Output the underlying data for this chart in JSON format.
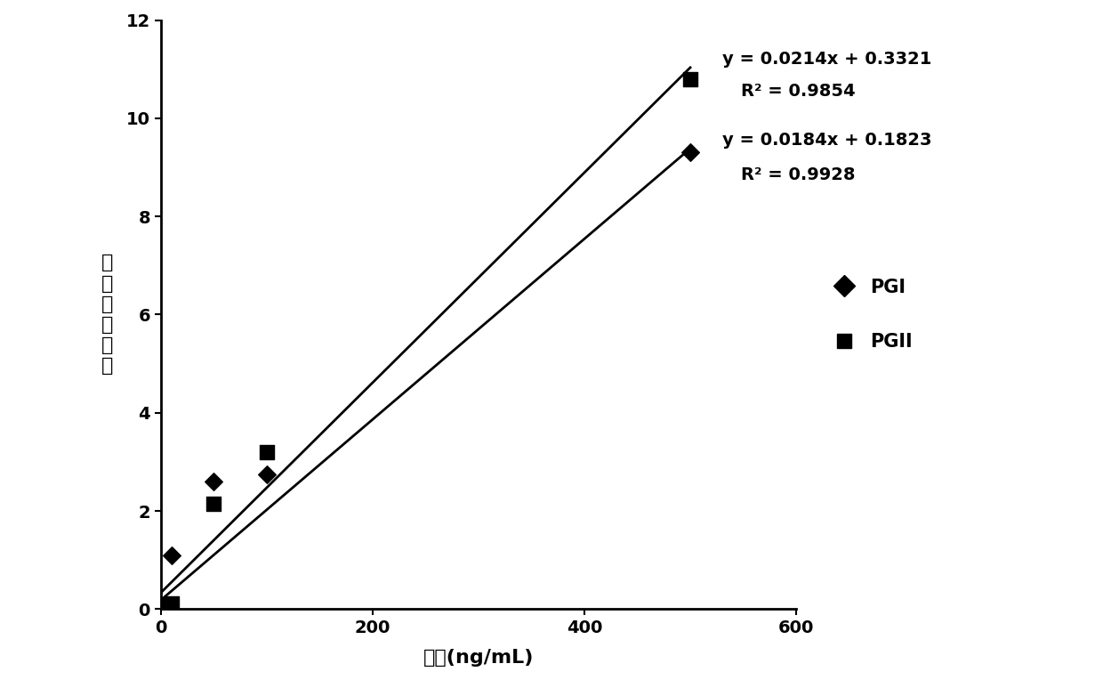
{
  "pgi_x": [
    0,
    10,
    50,
    100,
    500
  ],
  "pgi_y": [
    0.05,
    1.1,
    2.6,
    2.75,
    9.3
  ],
  "pgii_x": [
    0,
    10,
    50,
    100,
    500
  ],
  "pgii_y": [
    0.08,
    0.12,
    2.15,
    3.2,
    10.8
  ],
  "pgi_slope": 0.0184,
  "pgi_intercept": 0.1823,
  "pgii_slope": 0.0214,
  "pgii_intercept": 0.3321,
  "xlabel": "浓度(ng/mL)",
  "ylabel_chars": [
    "荻",
    "光",
    "强",
    "度",
    "比",
    "値"
  ],
  "xlim": [
    0,
    600
  ],
  "ylim": [
    0,
    12
  ],
  "xticks": [
    0,
    200,
    400,
    600
  ],
  "yticks": [
    0,
    2,
    4,
    6,
    8,
    10,
    12
  ],
  "pgi_label": "PGI",
  "pgii_label": "PGII",
  "pgi_eq": "y = 0.0184x + 0.1823",
  "pgi_r2_str": "R² = 0.9928",
  "pgii_eq": "y = 0.0214x + 0.3321",
  "pgii_r2_str": "R² = 0.9854",
  "color": "#000000",
  "background": "#ffffff",
  "fig_width": 12.4,
  "fig_height": 7.64,
  "line_x_end": 500
}
